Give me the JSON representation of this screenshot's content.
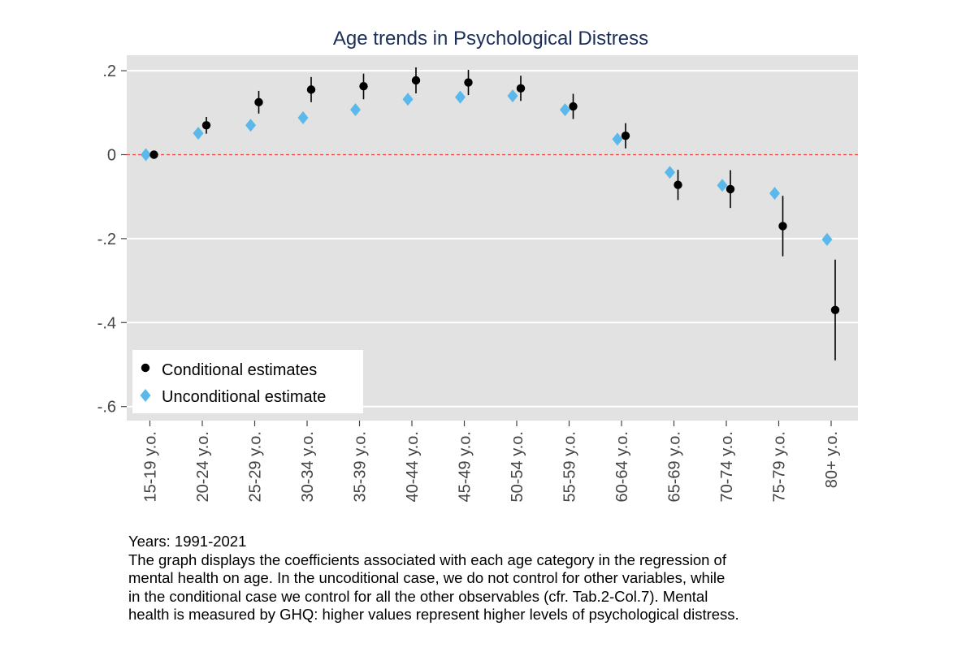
{
  "chart_data": {
    "type": "scatter",
    "title": "Age trends in Psychological Distress",
    "categories": [
      "15-19 y.o.",
      "20-24 y.o.",
      "25-29 y.o.",
      "30-34 y.o.",
      "35-39 y.o.",
      "40-44 y.o.",
      "45-49 y.o.",
      "50-54 y.o.",
      "55-59 y.o.",
      "60-64 y.o.",
      "65-69 y.o.",
      "70-74 y.o.",
      "75-79 y.o.",
      "80+ y.o."
    ],
    "ylim": [
      -0.62,
      0.24
    ],
    "yticks": [
      0.2,
      0,
      -0.2,
      -0.4,
      -0.6
    ],
    "ytick_labels": [
      ".2",
      "0",
      "-.2",
      "-.4",
      "-.6"
    ],
    "reference_line": 0,
    "grid": true,
    "legend_position": "bottom-left",
    "series": [
      {
        "name": "Conditional estimates",
        "marker": "circle",
        "color": "#000000",
        "values": [
          0,
          0.07,
          0.125,
          0.155,
          0.163,
          0.177,
          0.172,
          0.158,
          0.115,
          0.045,
          -0.072,
          -0.082,
          -0.17,
          -0.37
        ],
        "ci_low": [
          0,
          0.05,
          0.098,
          0.125,
          0.132,
          0.146,
          0.142,
          0.128,
          0.085,
          0.015,
          -0.108,
          -0.127,
          -0.242,
          -0.49
        ],
        "ci_high": [
          0,
          0.09,
          0.152,
          0.185,
          0.193,
          0.208,
          0.202,
          0.188,
          0.145,
          0.075,
          -0.036,
          -0.037,
          -0.098,
          -0.25
        ]
      },
      {
        "name": "Unconditional estimate",
        "marker": "diamond",
        "color": "#5bb8ea",
        "values": [
          0,
          0.051,
          0.07,
          0.088,
          0.107,
          0.132,
          0.137,
          0.14,
          0.107,
          0.037,
          -0.042,
          -0.073,
          -0.092,
          -0.202
        ]
      }
    ]
  },
  "note": {
    "lines": [
      "Years: 1991-2021",
      "The graph displays the coefficients associated with each age category in the regression of",
      "mental health on age. In the uncoditional case, we do not control for other variables, while",
      "in the conditional case we control for all the other observables (cfr. Tab.2-Col.7). Mental",
      "health is measured by GHQ: higher values represent higher levels of psychological distress."
    ]
  }
}
